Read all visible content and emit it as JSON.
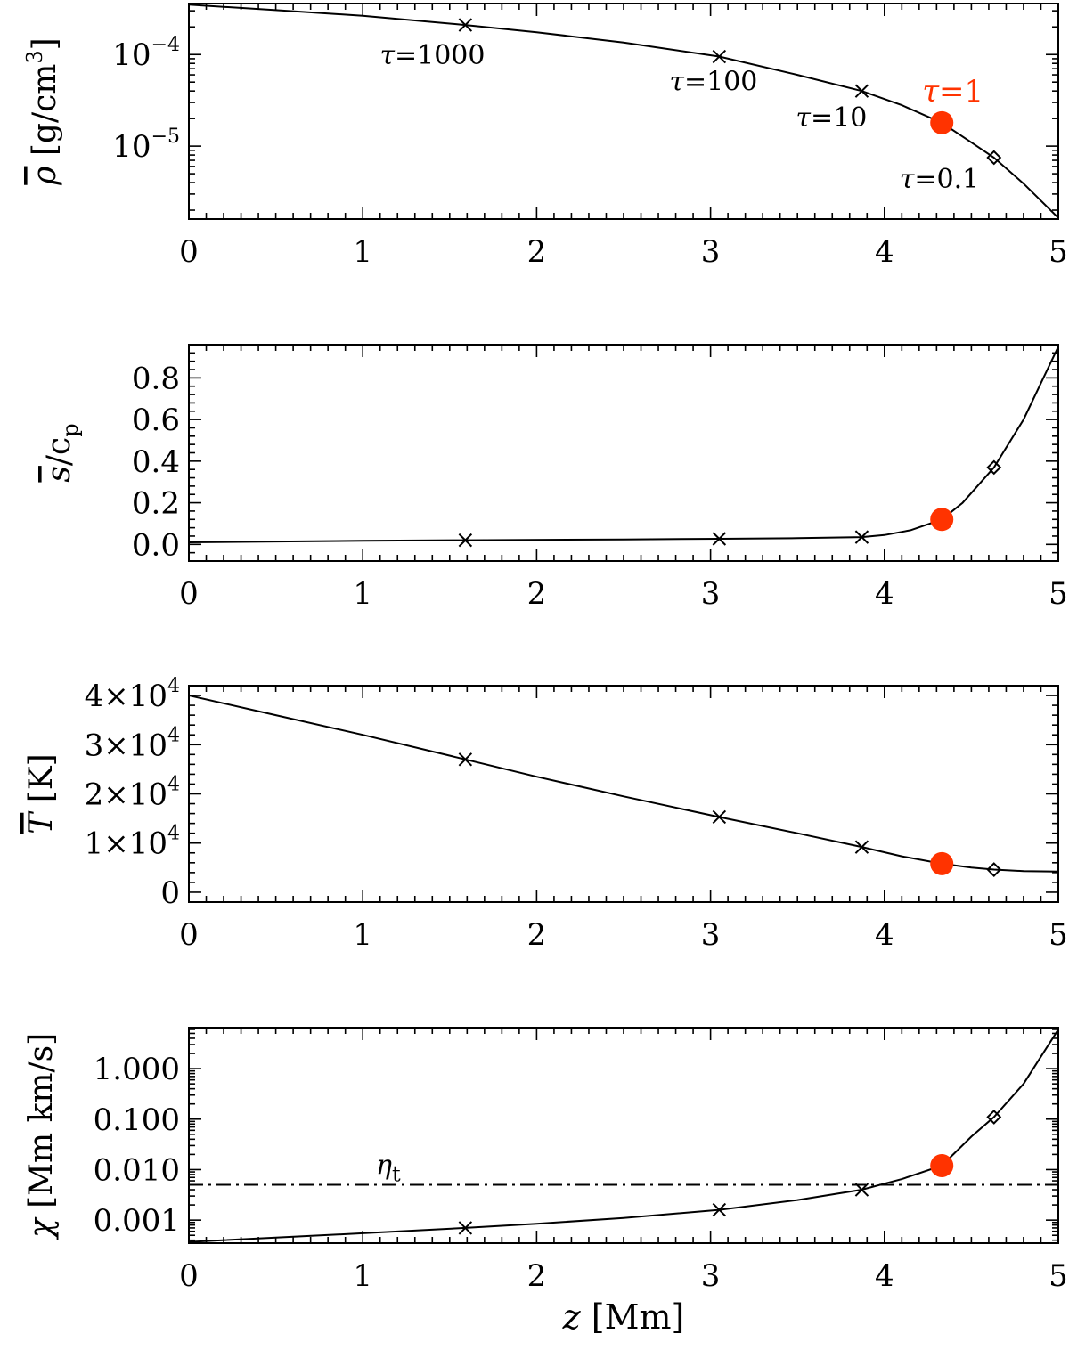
{
  "chart_data": [
    {
      "type": "line",
      "id": "rho",
      "ylabel_symbol": "ρ",
      "ylabel_unit": "[g/cm",
      "ylabel_exp": "3",
      "ylabel_close": "]",
      "xlim": [
        0,
        5
      ],
      "ylim": [
        1.6e-06,
        0.00036
      ],
      "yscale": "log",
      "xticks": [
        "0",
        "1",
        "2",
        "3",
        "4",
        "5"
      ],
      "yticks": [
        {
          "value": 0.0001,
          "base": "10",
          "exp": "−4"
        },
        {
          "value": 1e-05,
          "base": "10",
          "exp": "−5"
        }
      ],
      "curve": {
        "x": [
          0,
          0.5,
          1.0,
          1.59,
          2.0,
          2.5,
          3.05,
          3.5,
          3.87,
          4.1,
          4.33,
          4.5,
          4.63,
          4.8,
          5.0
        ],
        "y": [
          0.00035,
          0.000305,
          0.000265,
          0.00021,
          0.000175,
          0.000135,
          9.5e-05,
          6e-05,
          4e-05,
          2.8e-05,
          1.8e-05,
          1.1e-05,
          7.5e-06,
          3.9e-06,
          1.65e-06
        ]
      },
      "markers": [
        {
          "x": 1.59,
          "y": 0.00021,
          "shape": "x",
          "label": "τ=1000"
        },
        {
          "x": 3.05,
          "y": 9.5e-05,
          "shape": "x",
          "label": "τ=100"
        },
        {
          "x": 3.87,
          "y": 4e-05,
          "shape": "x",
          "label": "τ=10"
        },
        {
          "x": 4.33,
          "y": 1.8e-05,
          "shape": "dot",
          "label": "τ=1"
        },
        {
          "x": 4.63,
          "y": 7.5e-06,
          "shape": "diamond",
          "label": "τ=0.1"
        }
      ]
    },
    {
      "type": "line",
      "id": "entropy",
      "ylabel_symbol": "s",
      "ylabel_unit": "/c",
      "ylabel_sub": "p",
      "xlim": [
        0,
        5
      ],
      "ylim": [
        -0.08,
        0.96
      ],
      "yscale": "linear",
      "xticks": [
        "0",
        "1",
        "2",
        "3",
        "4",
        "5"
      ],
      "yticks": [
        {
          "value": 0.0,
          "label": "0.0"
        },
        {
          "value": 0.2,
          "label": "0.2"
        },
        {
          "value": 0.4,
          "label": "0.4"
        },
        {
          "value": 0.6,
          "label": "0.6"
        },
        {
          "value": 0.8,
          "label": "0.8"
        }
      ],
      "curve": {
        "x": [
          0,
          1.0,
          1.59,
          2.5,
          3.05,
          3.5,
          3.87,
          4.0,
          4.15,
          4.33,
          4.45,
          4.63,
          4.8,
          5.0
        ],
        "y": [
          0.01,
          0.017,
          0.02,
          0.024,
          0.027,
          0.03,
          0.035,
          0.045,
          0.068,
          0.12,
          0.2,
          0.37,
          0.6,
          0.95
        ]
      },
      "markers": [
        {
          "x": 1.59,
          "y": 0.02,
          "shape": "x"
        },
        {
          "x": 3.05,
          "y": 0.027,
          "shape": "x"
        },
        {
          "x": 3.87,
          "y": 0.035,
          "shape": "x"
        },
        {
          "x": 4.33,
          "y": 0.12,
          "shape": "dot"
        },
        {
          "x": 4.63,
          "y": 0.37,
          "shape": "diamond"
        }
      ]
    },
    {
      "type": "line",
      "id": "temperature",
      "ylabel_symbol": "T",
      "ylabel_unit": "[K]",
      "xlim": [
        0,
        5
      ],
      "ylim": [
        -2000,
        42000
      ],
      "yscale": "linear",
      "xticks": [
        "0",
        "1",
        "2",
        "3",
        "4",
        "5"
      ],
      "yticks": [
        {
          "value": 0,
          "label": "0"
        },
        {
          "value": 10000,
          "label": "1×10",
          "exp": "4"
        },
        {
          "value": 20000,
          "label": "2×10",
          "exp": "4"
        },
        {
          "value": 30000,
          "label": "3×10",
          "exp": "4"
        },
        {
          "value": 40000,
          "label": "4×10",
          "exp": "4"
        }
      ],
      "curve": {
        "x": [
          0,
          0.5,
          1.0,
          1.59,
          2.0,
          2.5,
          3.05,
          3.5,
          3.87,
          4.1,
          4.33,
          4.5,
          4.63,
          4.8,
          5.0
        ],
        "y": [
          40000,
          36000,
          32000,
          27000,
          23500,
          19500,
          15300,
          12000,
          9200,
          7300,
          5800,
          5000,
          4600,
          4300,
          4200
        ]
      },
      "markers": [
        {
          "x": 1.59,
          "y": 27000,
          "shape": "x"
        },
        {
          "x": 3.05,
          "y": 15300,
          "shape": "x"
        },
        {
          "x": 3.87,
          "y": 9200,
          "shape": "x"
        },
        {
          "x": 4.33,
          "y": 5800,
          "shape": "dot"
        },
        {
          "x": 4.63,
          "y": 4600,
          "shape": "diamond"
        }
      ]
    },
    {
      "type": "line",
      "id": "chi",
      "ylabel_symbol": "χ",
      "ylabel_unit": "[Mm km/s]",
      "xlabel": "[Mm]",
      "xlabel_symbol": "z",
      "xlim": [
        0,
        5
      ],
      "ylim": [
        0.00035,
        6.5
      ],
      "yscale": "log",
      "xticks": [
        "0",
        "1",
        "2",
        "3",
        "4",
        "5"
      ],
      "yticks": [
        {
          "value": 0.001,
          "label": "0.001"
        },
        {
          "value": 0.01,
          "label": "0.010"
        },
        {
          "value": 0.1,
          "label": "0.100"
        },
        {
          "value": 1.0,
          "label": "1.000"
        }
      ],
      "curve": {
        "x": [
          0,
          0.5,
          1.0,
          1.59,
          2.0,
          2.5,
          3.05,
          3.5,
          3.87,
          4.1,
          4.33,
          4.5,
          4.63,
          4.8,
          5.0
        ],
        "y": [
          0.00037,
          0.00045,
          0.00055,
          0.0007,
          0.00085,
          0.0011,
          0.0016,
          0.0025,
          0.004,
          0.0065,
          0.012,
          0.045,
          0.11,
          0.5,
          6.0
        ]
      },
      "reference_line": {
        "y": 0.005,
        "label": "η",
        "label_sub": "t",
        "style": "dash-dot"
      },
      "markers": [
        {
          "x": 1.59,
          "y": 0.0007,
          "shape": "x"
        },
        {
          "x": 3.05,
          "y": 0.0016,
          "shape": "x"
        },
        {
          "x": 3.87,
          "y": 0.004,
          "shape": "x"
        },
        {
          "x": 4.33,
          "y": 0.012,
          "shape": "dot"
        },
        {
          "x": 4.63,
          "y": 0.11,
          "shape": "diamond"
        }
      ]
    }
  ],
  "colors": {
    "highlight": "#ff3300",
    "line": "#000000",
    "background": "#ffffff"
  }
}
